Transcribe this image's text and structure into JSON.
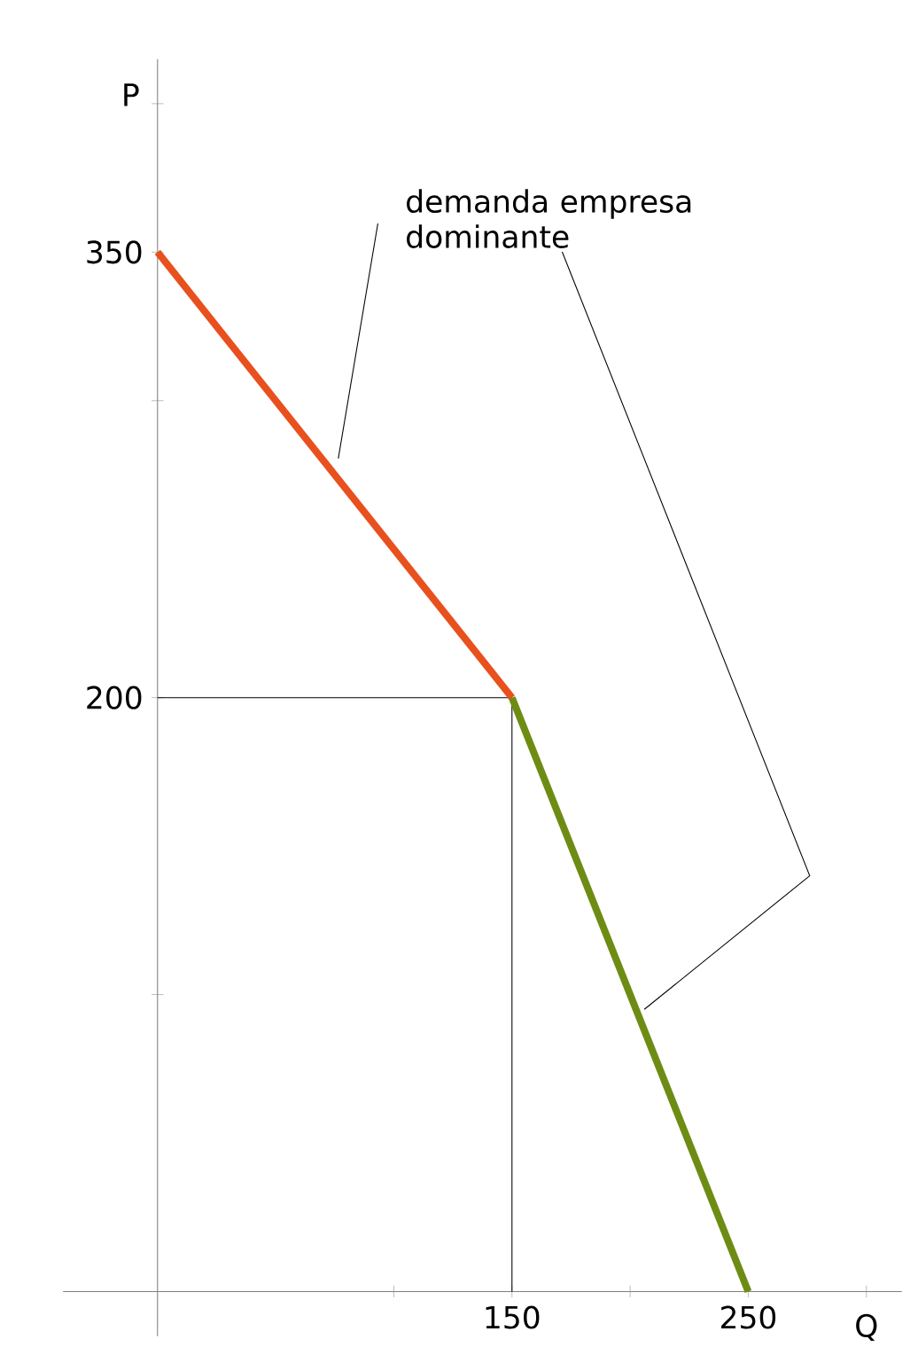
{
  "chart_data": {
    "type": "line",
    "xlabel": "Q",
    "ylabel": "P",
    "xlim": [
      -40,
      315
    ],
    "ylim": [
      -15,
      415
    ],
    "xticks": [
      {
        "value": 100,
        "label": null
      },
      150,
      {
        "value": 200,
        "label": null
      },
      250,
      {
        "value": 300,
        "label": null
      }
    ],
    "yticks": [
      {
        "value": 100,
        "label": null
      },
      200,
      {
        "value": 300,
        "label": null
      },
      350,
      {
        "value": 400,
        "label": null
      }
    ],
    "series": [
      {
        "color": "#e8501e",
        "x": [
          0,
          150
        ],
        "values": [
          350,
          200
        ]
      },
      {
        "color": "#6e8c14",
        "x": [
          150,
          250
        ],
        "values": [
          200,
          0
        ]
      }
    ],
    "ref_lines": [
      {
        "axis": "x",
        "value": 150,
        "color": "#000000"
      },
      {
        "axis": "y",
        "value": 200,
        "color": "#000000"
      }
    ],
    "annotations": [
      "demanda empresa dominante"
    ],
    "grid": false,
    "marker": "none",
    "line_style": "solid"
  }
}
